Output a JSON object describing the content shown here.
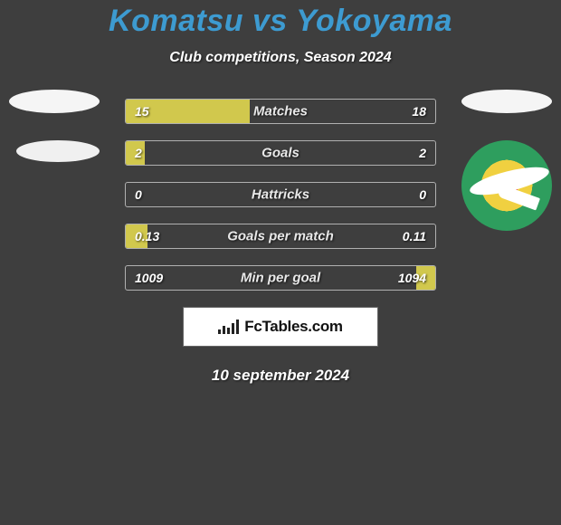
{
  "title": "Komatsu vs Yokoyama",
  "subtitle": "Club competitions, Season 2024",
  "date": "10 september 2024",
  "logo_text": "FcTables.com",
  "colors": {
    "background": "#3e3e3e",
    "title": "#3d9bd1",
    "bar_fill": "#d1c84d",
    "bar_border": "#b0b0b0",
    "text_white": "#ffffff"
  },
  "left_club": {
    "badges": [
      "ellipse",
      "ellipse"
    ]
  },
  "right_club": {
    "badges": [
      "ellipse",
      "jef-united"
    ]
  },
  "stats": [
    {
      "label": "Matches",
      "left_value": "15",
      "right_value": "18",
      "left_raw": 15,
      "right_raw": 18,
      "left_pct": 40,
      "right_pct": 0
    },
    {
      "label": "Goals",
      "left_value": "2",
      "right_value": "2",
      "left_raw": 2,
      "right_raw": 2,
      "left_pct": 6,
      "right_pct": 0
    },
    {
      "label": "Hattricks",
      "left_value": "0",
      "right_value": "0",
      "left_raw": 0,
      "right_raw": 0,
      "left_pct": 0,
      "right_pct": 0
    },
    {
      "label": "Goals per match",
      "left_value": "0.13",
      "right_value": "0.11",
      "left_raw": 0.13,
      "right_raw": 0.11,
      "left_pct": 7,
      "right_pct": 0
    },
    {
      "label": "Min per goal",
      "left_value": "1009",
      "right_value": "1094",
      "left_raw": 1009,
      "right_raw": 1094,
      "left_pct": 0,
      "right_pct": 6
    }
  ]
}
